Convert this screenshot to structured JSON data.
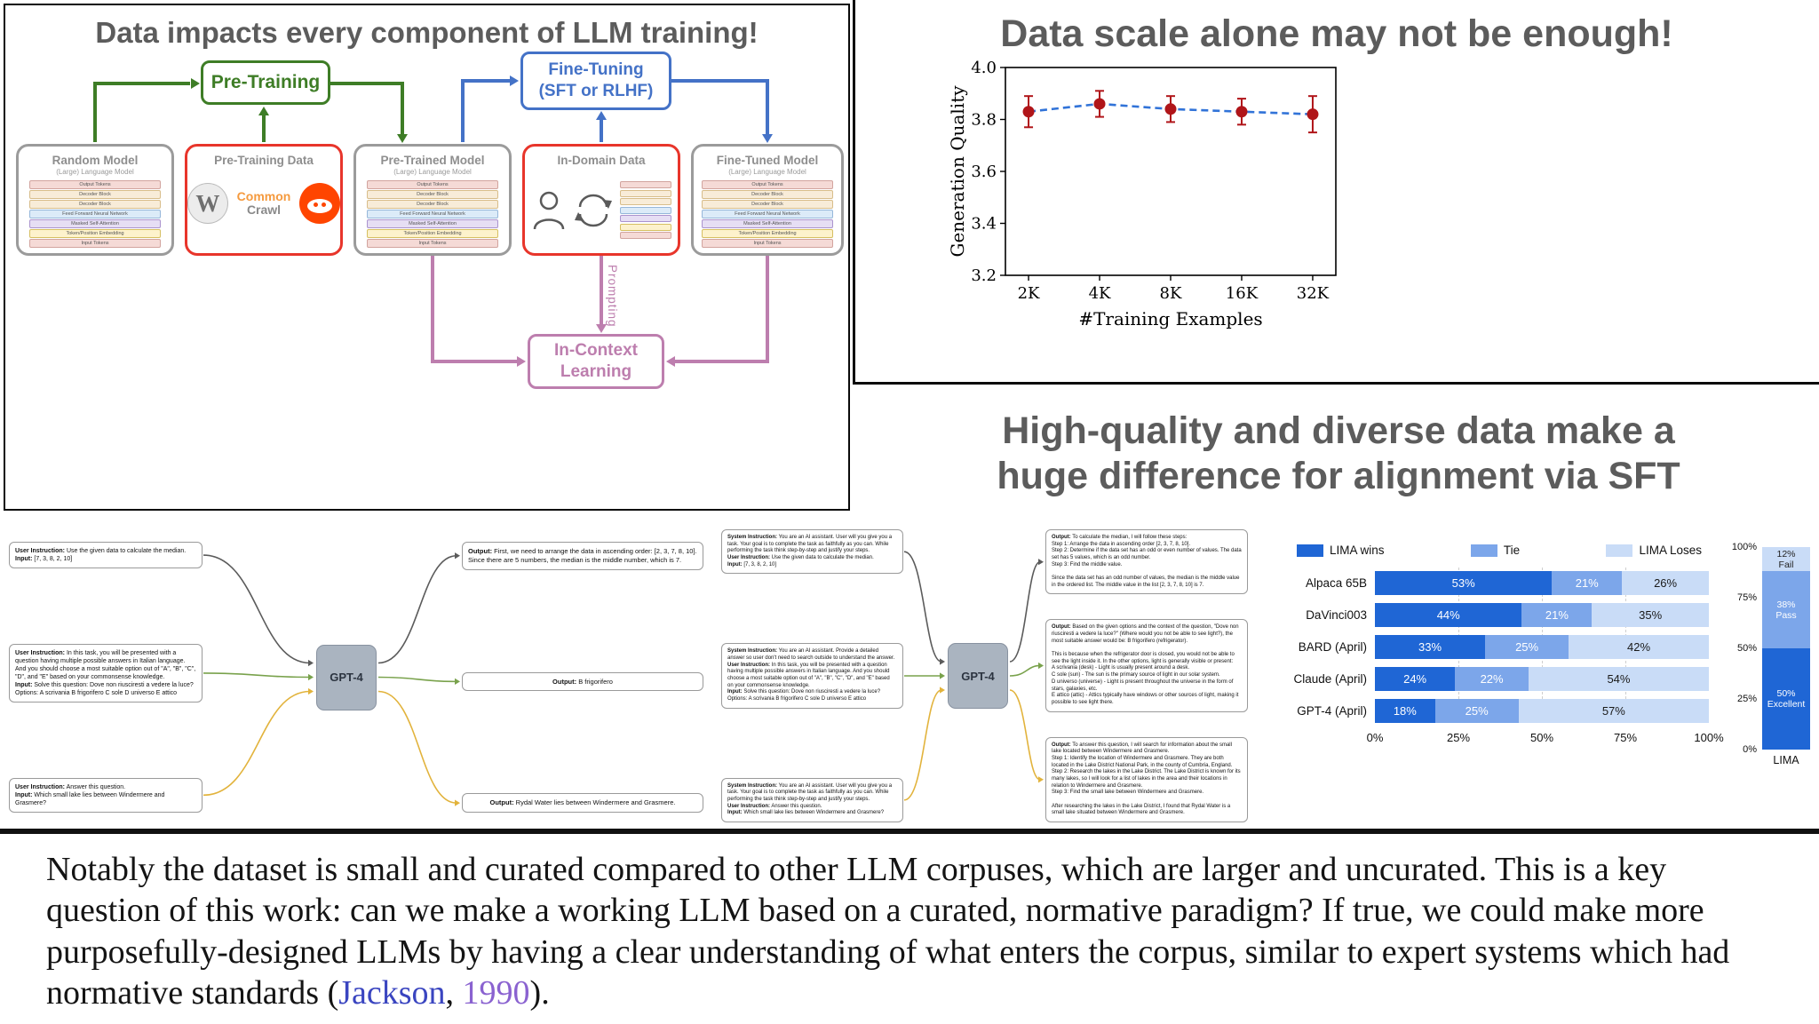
{
  "colors": {
    "green": "#3e7d26",
    "blue": "#4472c7",
    "red": "#e8352b",
    "pink": "#bd7eae",
    "gray_border": "#9b9b9b",
    "heading_gray": "#5c5c5c",
    "cite_author": "#3a45c0",
    "cite_year": "#8a62d0",
    "reddit_orange": "#ff4500",
    "cc_orange": "#f59a3e"
  },
  "top_left": {
    "title": "Data impacts every component of LLM training!",
    "pretraining": "Pre-Training",
    "finetuning_line1": "Fine-Tuning",
    "finetuning_line2": "(SFT or RLHF)",
    "incontext_line1": "In-Context",
    "incontext_line2": "Learning",
    "prompting": "Prompting",
    "common": "Common",
    "crawl": "Crawl",
    "boxes": [
      {
        "title": "Random Model",
        "subtitle": "(Large) Language Model"
      },
      {
        "title": "Pre-Training Data"
      },
      {
        "title": "Pre-Trained Model",
        "subtitle": "(Large) Language Model"
      },
      {
        "title": "In-Domain Data"
      },
      {
        "title": "Fine-Tuned Model",
        "subtitle": "(Large) Language Model"
      }
    ],
    "stack_layers": [
      {
        "label": "Output Tokens",
        "bg": "#f5dad6",
        "bd": "#d2a49e"
      },
      {
        "label": "Decoder Block",
        "bg": "#f8ecd8",
        "bd": "#d8bd8a"
      },
      {
        "label": "Decoder Block",
        "bg": "#f8ecd8",
        "bd": "#d8bd8a"
      },
      {
        "label": "Feed Forward Neural Network",
        "bg": "#dcebf8",
        "bd": "#96b7da"
      },
      {
        "label": "Masked Self-Attention",
        "bg": "#e6def4",
        "bd": "#ab94ce"
      },
      {
        "label": "Token/Position Embedding",
        "bg": "#fdf2cc",
        "bd": "#d6bf62"
      },
      {
        "label": "Input Tokens",
        "bg": "#f5dad6",
        "bd": "#d2a49e"
      }
    ]
  },
  "right_top": {
    "title": "Data scale alone may not be enough!"
  },
  "right_mid": {
    "line1": "High-quality and diverse data make a",
    "line2": "huge difference for alignment via SFT"
  },
  "gpt4_diagram": {
    "model_label": "GPT-4",
    "arrow_colors": [
      "#5b5b5b",
      "#79a24c",
      "#e2b33c"
    ],
    "flow1": {
      "inputs": [
        "**User Instruction:** Use the given data to calculate the median.\n**Input:** [7, 3, 8, 2, 10]",
        "**User Instruction:** In this task, you will be presented with a question having multiple possible answers in Italian language. And you should choose a most suitable option out of \"A\", \"B\", \"C\", \"D\", and \"E\" based on your commonsense knowledge.\n**Input:** Solve this question: Dove non riusciresti a vedere la luce?\nOptions: A scrivania B frigorifero C sole D universo E attico",
        "**User Instruction:** Answer this question.\n**Input:** Which small lake lies between Windermere and Grasmere?"
      ],
      "outputs": [
        "**Output:** First, we need to arrange the data in ascending order: [2, 3, 7, 8, 10]. Since there are 5 numbers, the median is the middle number, which is 7.",
        "**Output:** B frigorifero",
        "**Output:** Rydal Water lies between Windermere and Grasmere."
      ]
    },
    "flow2": {
      "inputs": [
        "**System Instruction:** You are an AI assistant. User will you give you a task. Your goal is to complete the task as faithfully as you can. While performing the task think step-by-step and justify your steps.\n**User Instruction:** Use the given data to calculate the median.\n**Input:** [7, 3, 8, 2, 10]",
        "**System Instruction:** You are an AI assistant. Provide a detailed answer so user don't need to search outside to understand the answer.\n**User Instruction:** In this task, you will be presented with a question having multiple possible answers in Italian language. And you should choose a most suitable option out of \"A\", \"B\", \"C\", \"D\", and \"E\" based on your commonsense knowledge.\n**Input:** Solve this question: Dove non riusciresti a vedere la luce? Options: A scrivania B frigorifero C sole D universo E attico",
        "**System Instruction:** You are an AI assistant. User will you give you a task. Your goal is to complete the task as faithfully as you can. While performing the task think step-by-step and justify your steps.\n**User Instruction:** Answer this question.\n**Input:** Which small lake lies between Windermere and Grasmere?"
      ],
      "outputs": [
        "**Output:** To calculate the median, I will follow these steps:\nStep 1: Arrange the data in ascending order [2, 3, 7, 8, 10].\nStep 2: Determine if the data set has an odd or even number of values. The data set has 5 values, which is an odd number.\nStep 3: Find the middle value.\n\nSince the data set has an odd number of values, the median is the middle value in the ordered list. The middle value in the list [2, 3, 7, 8, 10] is 7.",
        "**Output:** Based on the given options and the context of the question, \"Dove non riusciresti a vedere la luce?\" (Where would you not be able to see light?), the most suitable answer would be: B frigorifero (refrigerator).\n\nThis is because when the refrigerator door is closed, you would not be able to see the light inside it. In the other options, light is generally visible or present:\nA scrivania (desk) - Light is usually present around a desk.\nC sole (sun) - The sun is the primary source of light in our solar system.\nD universo (universe) - Light is present throughout the universe in the form of stars, galaxies, etc.\nE attico (attic) - Attics typically have windows or other sources of light, making it possible to see light there.",
        "**Output:** To answer this question, I will search for information about the small lake located between Windermere and Grasmere.\nStep 1: Identify the location of Windermere and Grasmere. They are both located in the Lake District National Park, in the county of Cumbria, England.\nStep 2: Research the lakes in the Lake District. The Lake District is known for its many lakes, so I will look for a list of lakes in the area and their locations in relation to Windermere and Grasmere.\nStep 3: Find the small lake between Windermere and Grasmere.\n\nAfter researching the lakes in the Lake District, I found that Rydal Water is a small lake situated between Windermere and Grasmere."
      ]
    }
  },
  "chart_data": [
    {
      "id": "scale_chart",
      "type": "scatter",
      "title": "",
      "x_categories": [
        "2K",
        "4K",
        "8K",
        "16K",
        "32K"
      ],
      "values": [
        3.83,
        3.86,
        3.84,
        3.83,
        3.82
      ],
      "error": [
        0.06,
        0.05,
        0.05,
        0.05,
        0.07
      ],
      "xlabel": "#Training Examples",
      "ylabel": "Generation Quality",
      "ylim": [
        3.2,
        4.0
      ],
      "yticks": [
        3.2,
        3.4,
        3.6,
        3.8,
        4.0
      ],
      "point_color": "#b01519",
      "line_color": "#3173d8",
      "line_style": "dashed",
      "grid": false
    },
    {
      "id": "lima_comparison",
      "type": "bar",
      "orientation": "horizontal-stacked",
      "categories": [
        "Alpaca 65B",
        "DaVinci003",
        "BARD (April)",
        "Claude (April)",
        "GPT-4 (April)"
      ],
      "series": [
        {
          "name": "LIMA wins",
          "color": "#1f66d5",
          "values": [
            53,
            44,
            33,
            24,
            18
          ]
        },
        {
          "name": "Tie",
          "color": "#7ca6ea",
          "values": [
            21,
            21,
            25,
            22,
            25
          ]
        },
        {
          "name": "LIMA Loses",
          "color": "#c9dcf7",
          "values": [
            26,
            35,
            42,
            54,
            57
          ]
        }
      ],
      "xticks": [
        "0%",
        "25%",
        "50%",
        "75%",
        "100%"
      ],
      "grid": true,
      "legend_position": "top"
    },
    {
      "id": "lima_quality",
      "type": "bar",
      "orientation": "vertical-stacked",
      "category": "LIMA",
      "segments": [
        {
          "label": "Excellent",
          "pct": 50,
          "color": "#1f66d5",
          "text_color": "#ffffff"
        },
        {
          "label": "Pass",
          "pct": 38,
          "color": "#7ca6ea",
          "text_color": "#ffffff"
        },
        {
          "label": "Fail",
          "pct": 12,
          "color": "#c9dcf7",
          "text_color": "#222222"
        }
      ],
      "yticks": [
        "0%",
        "25%",
        "50%",
        "75%",
        "100%"
      ]
    }
  ],
  "bottom": {
    "text_before": "Notably the dataset is small and curated compared to other LLM corpuses, which are larger and uncurated. This is a key question of this work: can we make a working LLM based on a curated, normative paradigm? If true, we could make more purposefully-designed LLMs by having a clear understanding of what enters the corpus, similar to expert systems which had normative standards (",
    "cite_author": "Jackson",
    "cite_sep": ", ",
    "cite_year": "1990",
    "text_after": ")."
  }
}
